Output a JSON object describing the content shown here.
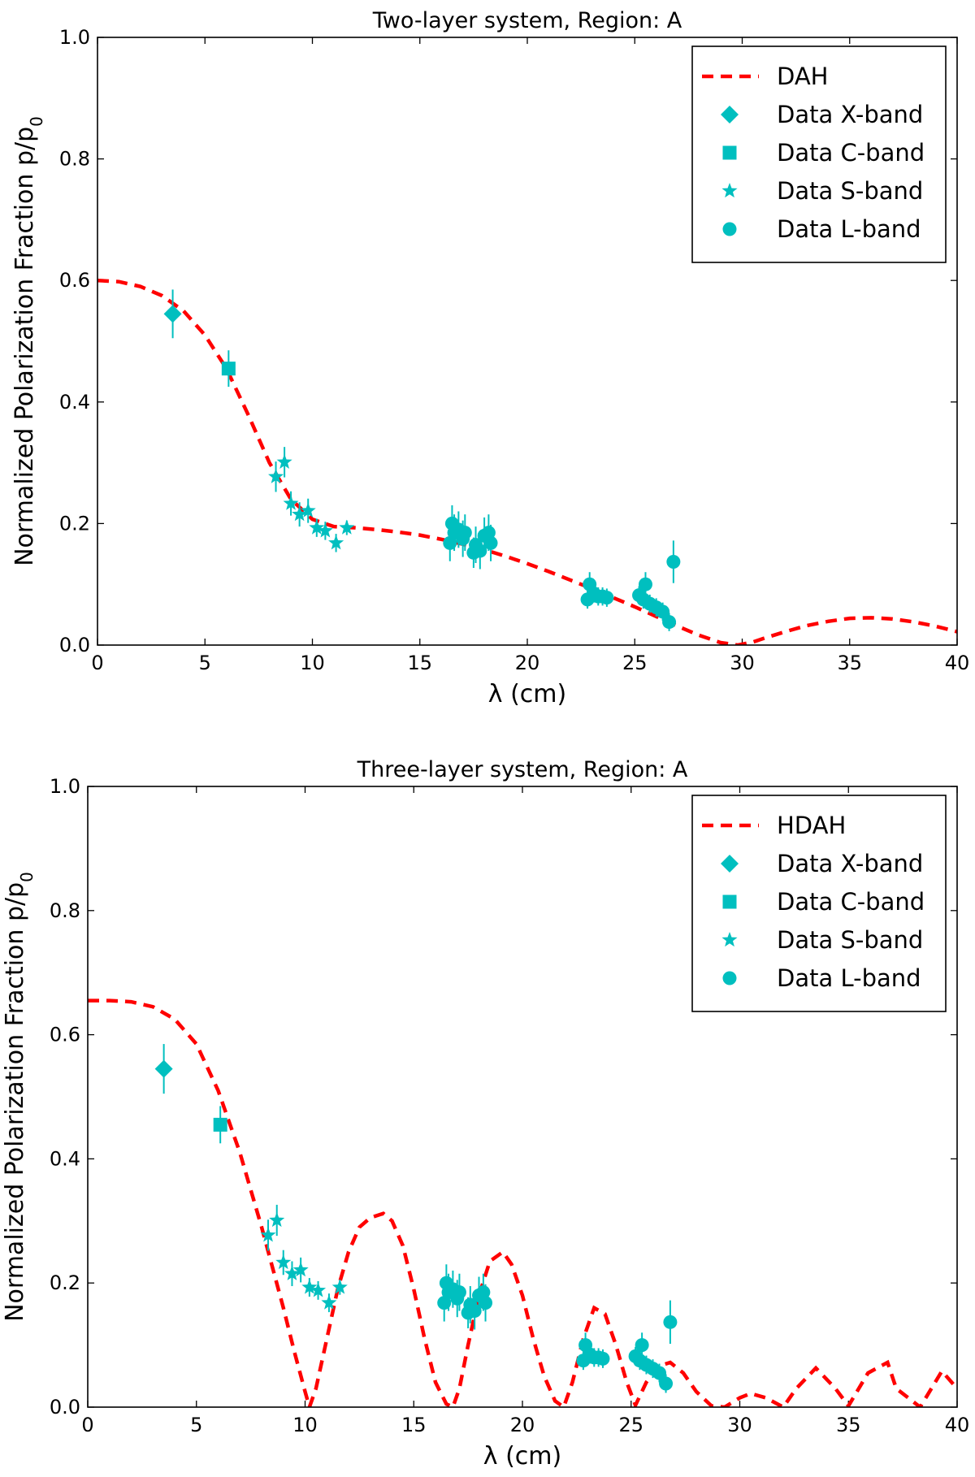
{
  "chart_data": [
    {
      "type": "line+scatter",
      "title": "Two-layer system, Region: A",
      "xlabel": "λ (cm)",
      "ylabel": "Normalized Polarization Fraction p/p",
      "ylabel_subscript": "0",
      "xlim": [
        0,
        40
      ],
      "ylim": [
        0.0,
        1.0
      ],
      "xticks": [
        "0",
        "5",
        "10",
        "15",
        "20",
        "25",
        "30",
        "35",
        "40"
      ],
      "yticks": [
        "0.0",
        "0.2",
        "0.4",
        "0.6",
        "0.8",
        "1.0"
      ],
      "legend_position": "top-right",
      "model": {
        "name": "DAH",
        "color": "#ff0000",
        "x": [
          0,
          1,
          2,
          3,
          4,
          5,
          6,
          7,
          8,
          9,
          10,
          11,
          12,
          13,
          14,
          15,
          16,
          17,
          18,
          19,
          20,
          21,
          22,
          23,
          24,
          25,
          26,
          27,
          28,
          29,
          29.8,
          30.5,
          31,
          32,
          33,
          34,
          35,
          36,
          37,
          38,
          39,
          40
        ],
        "y": [
          0.6,
          0.598,
          0.59,
          0.575,
          0.55,
          0.51,
          0.455,
          0.38,
          0.3,
          0.24,
          0.207,
          0.195,
          0.193,
          0.19,
          0.186,
          0.181,
          0.174,
          0.166,
          0.157,
          0.146,
          0.134,
          0.121,
          0.107,
          0.093,
          0.078,
          0.063,
          0.047,
          0.031,
          0.016,
          0.004,
          0.0,
          0.005,
          0.011,
          0.022,
          0.032,
          0.039,
          0.044,
          0.045,
          0.043,
          0.038,
          0.031,
          0.022
        ]
      },
      "series": [
        {
          "name": "Data X-band",
          "marker": "diamond",
          "color": "#00bfbf",
          "x": [
            3.5
          ],
          "y": [
            0.545
          ],
          "yerr": [
            0.04
          ]
        },
        {
          "name": "Data C-band",
          "marker": "square",
          "color": "#00bfbf",
          "x": [
            6.1
          ],
          "y": [
            0.455
          ],
          "yerr": [
            0.03
          ]
        },
        {
          "name": "Data S-band",
          "marker": "star",
          "color": "#00bfbf",
          "x": [
            8.3,
            8.7,
            9.0,
            9.4,
            9.8,
            10.2,
            10.6,
            11.1,
            11.6
          ],
          "y": [
            0.277,
            0.301,
            0.233,
            0.215,
            0.221,
            0.193,
            0.188,
            0.168,
            0.193
          ],
          "yerr": [
            0.025,
            0.025,
            0.02,
            0.02,
            0.02,
            0.015,
            0.015,
            0.015,
            0.012
          ]
        },
        {
          "name": "Data L-band",
          "marker": "circle",
          "color": "#00bfbf",
          "x": [
            16.4,
            16.5,
            16.6,
            16.8,
            17.0,
            17.1,
            17.5,
            17.6,
            17.8,
            18.0,
            18.2,
            18.3,
            22.8,
            22.9,
            23.1,
            23.3,
            23.5,
            23.7,
            25.2,
            25.4,
            25.5,
            25.7,
            26.0,
            26.3,
            26.6,
            26.8
          ],
          "y": [
            0.168,
            0.2,
            0.185,
            0.19,
            0.175,
            0.185,
            0.152,
            0.165,
            0.155,
            0.18,
            0.185,
            0.168,
            0.075,
            0.1,
            0.085,
            0.08,
            0.08,
            0.078,
            0.082,
            0.075,
            0.1,
            0.068,
            0.062,
            0.055,
            0.038,
            0.137
          ],
          "yerr": [
            0.03,
            0.03,
            0.03,
            0.03,
            0.03,
            0.03,
            0.025,
            0.03,
            0.03,
            0.03,
            0.03,
            0.03,
            0.015,
            0.02,
            0.015,
            0.015,
            0.015,
            0.015,
            0.015,
            0.015,
            0.02,
            0.015,
            0.015,
            0.015,
            0.015,
            0.035
          ]
        }
      ]
    },
    {
      "type": "line+scatter",
      "title": "Three-layer system, Region: A",
      "xlabel": "λ (cm)",
      "ylabel": "Normalized Polarization Fraction p/p",
      "ylabel_subscript": "0",
      "xlim": [
        0,
        40
      ],
      "ylim": [
        0.0,
        1.0
      ],
      "xticks": [
        "0",
        "5",
        "10",
        "15",
        "20",
        "25",
        "30",
        "35",
        "40"
      ],
      "yticks": [
        "0.0",
        "0.2",
        "0.4",
        "0.6",
        "0.8",
        "1.0"
      ],
      "legend_position": "top-right",
      "model": {
        "name": "HDAH",
        "color": "#ff0000",
        "x": [
          0,
          1,
          2,
          3,
          4,
          5,
          6,
          7,
          8,
          9,
          9.5,
          10,
          10.2,
          10.5,
          11,
          11.5,
          12,
          12.5,
          13,
          13.6,
          14,
          14.5,
          15,
          15.5,
          16,
          16.5,
          16.8,
          17.1,
          17.5,
          18,
          18.5,
          19.1,
          19.5,
          20,
          20.5,
          21,
          21.5,
          21.9,
          22.3,
          22.8,
          23.3,
          23.8,
          24.3,
          24.8,
          25.2,
          25.7,
          26.2,
          26.8,
          27.4,
          28,
          28.7,
          29.3,
          30,
          30.5,
          31.2,
          32,
          32.6,
          33.5,
          34.4,
          35,
          35.9,
          36.8,
          37.2,
          38.3,
          39.3,
          40
        ],
        "y": [
          0.655,
          0.655,
          0.653,
          0.645,
          0.625,
          0.585,
          0.51,
          0.41,
          0.29,
          0.16,
          0.09,
          0.025,
          0.0,
          0.03,
          0.11,
          0.19,
          0.25,
          0.29,
          0.305,
          0.312,
          0.3,
          0.26,
          0.19,
          0.11,
          0.04,
          0.005,
          0.0,
          0.03,
          0.1,
          0.18,
          0.235,
          0.25,
          0.23,
          0.18,
          0.11,
          0.05,
          0.01,
          0.0,
          0.04,
          0.11,
          0.16,
          0.15,
          0.1,
          0.04,
          0.003,
          0.04,
          0.065,
          0.072,
          0.055,
          0.025,
          0.002,
          0.0,
          0.015,
          0.022,
          0.015,
          0.0,
          0.03,
          0.063,
          0.03,
          0.002,
          0.055,
          0.072,
          0.03,
          0.0,
          0.058,
          0.03
        ]
      },
      "series": [
        {
          "name": "Data X-band",
          "marker": "diamond",
          "color": "#00bfbf",
          "x": [
            3.5
          ],
          "y": [
            0.545
          ],
          "yerr": [
            0.04
          ]
        },
        {
          "name": "Data C-band",
          "marker": "square",
          "color": "#00bfbf",
          "x": [
            6.1
          ],
          "y": [
            0.455
          ],
          "yerr": [
            0.03
          ]
        },
        {
          "name": "Data S-band",
          "marker": "star",
          "color": "#00bfbf",
          "x": [
            8.3,
            8.7,
            9.0,
            9.4,
            9.8,
            10.2,
            10.6,
            11.1,
            11.6
          ],
          "y": [
            0.277,
            0.301,
            0.233,
            0.215,
            0.221,
            0.193,
            0.188,
            0.168,
            0.193
          ],
          "yerr": [
            0.025,
            0.025,
            0.02,
            0.02,
            0.02,
            0.015,
            0.015,
            0.015,
            0.012
          ]
        },
        {
          "name": "Data L-band",
          "marker": "circle",
          "color": "#00bfbf",
          "x": [
            16.4,
            16.5,
            16.6,
            16.8,
            17.0,
            17.1,
            17.5,
            17.6,
            17.8,
            18.0,
            18.2,
            18.3,
            22.8,
            22.9,
            23.1,
            23.3,
            23.5,
            23.7,
            25.2,
            25.4,
            25.5,
            25.7,
            26.0,
            26.3,
            26.6,
            26.8
          ],
          "y": [
            0.168,
            0.2,
            0.185,
            0.19,
            0.175,
            0.185,
            0.152,
            0.165,
            0.155,
            0.18,
            0.185,
            0.168,
            0.075,
            0.1,
            0.085,
            0.08,
            0.08,
            0.078,
            0.082,
            0.075,
            0.1,
            0.068,
            0.062,
            0.055,
            0.038,
            0.137
          ],
          "yerr": [
            0.03,
            0.03,
            0.03,
            0.03,
            0.03,
            0.03,
            0.025,
            0.03,
            0.03,
            0.03,
            0.03,
            0.03,
            0.015,
            0.02,
            0.015,
            0.015,
            0.015,
            0.015,
            0.015,
            0.015,
            0.02,
            0.015,
            0.015,
            0.015,
            0.015,
            0.035
          ]
        }
      ]
    }
  ]
}
